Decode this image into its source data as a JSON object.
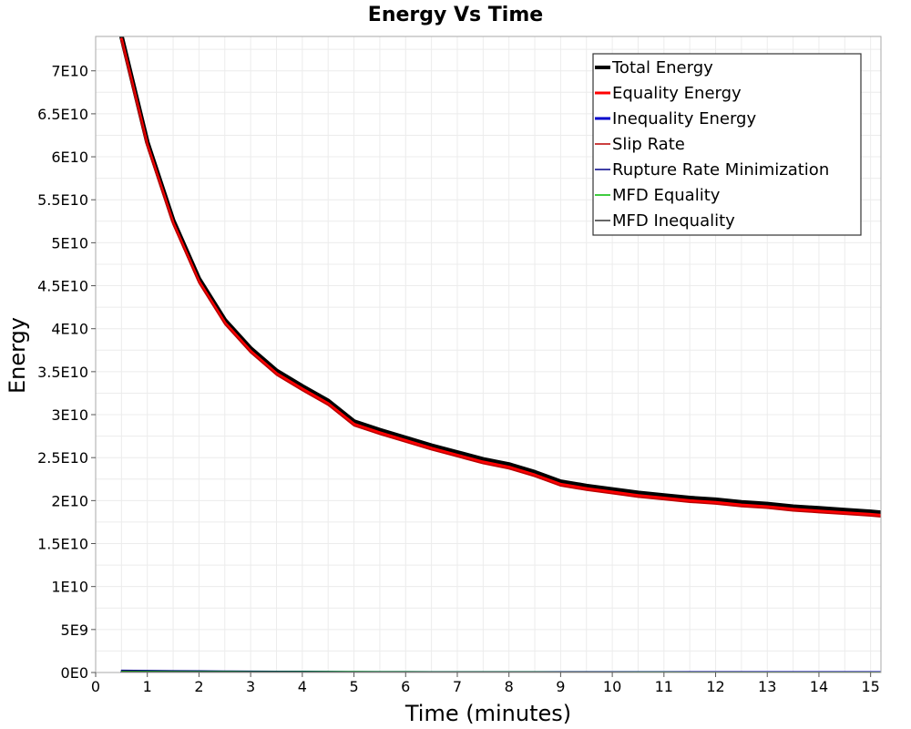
{
  "chart_data": {
    "type": "line",
    "title": "Energy Vs Time",
    "xlabel": "Time (minutes)",
    "ylabel": "Energy",
    "xlim": [
      0,
      15.2
    ],
    "ylim": [
      0,
      74000000000
    ],
    "grid": true,
    "legend_position": "top-right",
    "x_ticks": [
      0,
      1,
      2,
      3,
      4,
      5,
      6,
      7,
      8,
      9,
      10,
      11,
      12,
      13,
      14,
      15
    ],
    "x_tick_labels": [
      "0",
      "1",
      "2",
      "3",
      "4",
      "5",
      "6",
      "7",
      "8",
      "9",
      "10",
      "11",
      "12",
      "13",
      "14",
      "15"
    ],
    "y_ticks": [
      0,
      5000000000,
      10000000000,
      15000000000,
      20000000000,
      25000000000,
      30000000000,
      35000000000,
      40000000000,
      45000000000,
      50000000000,
      55000000000,
      60000000000,
      65000000000,
      70000000000
    ],
    "y_tick_labels": [
      "0E0",
      "5E9",
      "1E10",
      "1.5E10",
      "2E10",
      "2.5E10",
      "3E10",
      "3.5E10",
      "4E10",
      "4.5E10",
      "5E10",
      "5.5E10",
      "6E10",
      "6.5E10",
      "7E10"
    ],
    "x": [
      0.5,
      1.0,
      1.5,
      2.0,
      2.5,
      3.0,
      3.5,
      4.0,
      4.5,
      5.0,
      5.5,
      6.0,
      6.5,
      7.0,
      7.5,
      8.0,
      8.5,
      9.0,
      9.5,
      10.0,
      10.5,
      11.0,
      11.5,
      12.0,
      12.5,
      13.0,
      13.5,
      14.0,
      14.5,
      15.0,
      15.2
    ],
    "series": [
      {
        "name": "Total Energy",
        "color": "#000000",
        "values": [
          74000000000,
          61700000000,
          52600000000,
          45800000000,
          41000000000,
          37700000000,
          35100000000,
          33300000000,
          31600000000,
          29200000000,
          28200000000,
          27300000000,
          26400000000,
          25600000000,
          24800000000,
          24200000000,
          23300000000,
          22200000000,
          21700000000,
          21300000000,
          20900000000,
          20600000000,
          20300000000,
          20100000000,
          19800000000,
          19600000000,
          19300000000,
          19100000000,
          18900000000,
          18700000000,
          18600000000
        ]
      },
      {
        "name": "Equality Energy",
        "color": "#ff0000",
        "values": [
          73700000000,
          61400000000,
          52300000000,
          45500000000,
          40700000000,
          37400000000,
          34800000000,
          33000000000,
          31300000000,
          28900000000,
          27900000000,
          27000000000,
          26100000000,
          25300000000,
          24500000000,
          23900000000,
          23000000000,
          21900000000,
          21400000000,
          21000000000,
          20600000000,
          20300000000,
          20000000000,
          19800000000,
          19500000000,
          19300000000,
          19000000000,
          18800000000,
          18600000000,
          18400000000,
          18300000000
        ]
      },
      {
        "name": "Inequality Energy",
        "color": "#0000cc",
        "values": [
          0,
          0,
          0,
          0,
          0,
          0,
          0,
          0,
          0,
          0,
          0,
          0,
          0,
          0,
          0,
          0,
          0,
          0,
          0,
          0,
          0,
          0,
          0,
          0,
          0,
          0,
          0,
          0,
          0,
          0,
          0
        ]
      },
      {
        "name": "Slip Rate",
        "color": "#bb0000",
        "values": [
          73500000000,
          61200000000,
          52100000000,
          45300000000,
          40500000000,
          37200000000,
          34600000000,
          32800000000,
          31100000000,
          28700000000,
          27700000000,
          26800000000,
          25900000000,
          25100000000,
          24300000000,
          23700000000,
          22800000000,
          21700000000,
          21200000000,
          20800000000,
          20400000000,
          20100000000,
          19800000000,
          19600000000,
          19300000000,
          19100000000,
          18800000000,
          18600000000,
          18400000000,
          18200000000,
          18100000000
        ]
      },
      {
        "name": "Rupture Rate Minimization",
        "color": "#000088",
        "values": [
          250000000,
          220000000,
          200000000,
          180000000,
          160000000,
          150000000,
          140000000,
          130000000,
          120000000,
          110000000,
          100000000,
          95000000,
          90000000,
          85000000,
          80000000,
          75000000,
          70000000,
          65000000,
          60000000,
          58000000,
          56000000,
          54000000,
          52000000,
          50000000,
          48000000,
          46000000,
          44000000,
          42000000,
          40000000,
          38000000,
          37000000
        ]
      },
      {
        "name": "MFD Equality",
        "color": "#00bb00",
        "values": [
          130000000,
          120000000,
          110000000,
          100000000,
          95000000,
          90000000,
          85000000,
          80000000,
          75000000,
          70000000,
          66000000,
          62000000,
          58000000,
          55000000,
          52000000,
          50000000,
          48000000,
          46000000,
          44000000,
          42000000,
          40000000,
          38000000,
          36000000,
          34000000,
          32000000,
          30000000,
          28000000,
          26000000,
          24000000,
          22000000,
          21000000
        ]
      },
      {
        "name": "MFD Inequality",
        "color": "#333333",
        "values": [
          60000000,
          55000000,
          50000000,
          45000000,
          42000000,
          40000000,
          38000000,
          36000000,
          34000000,
          32000000,
          30000000,
          28000000,
          26000000,
          24000000,
          22000000,
          20000000,
          19000000,
          18000000,
          17000000,
          16000000,
          15000000,
          14000000,
          13000000,
          12000000,
          11000000,
          10000000,
          9000000,
          8000000,
          7000000,
          6000000,
          5500000
        ]
      }
    ]
  }
}
